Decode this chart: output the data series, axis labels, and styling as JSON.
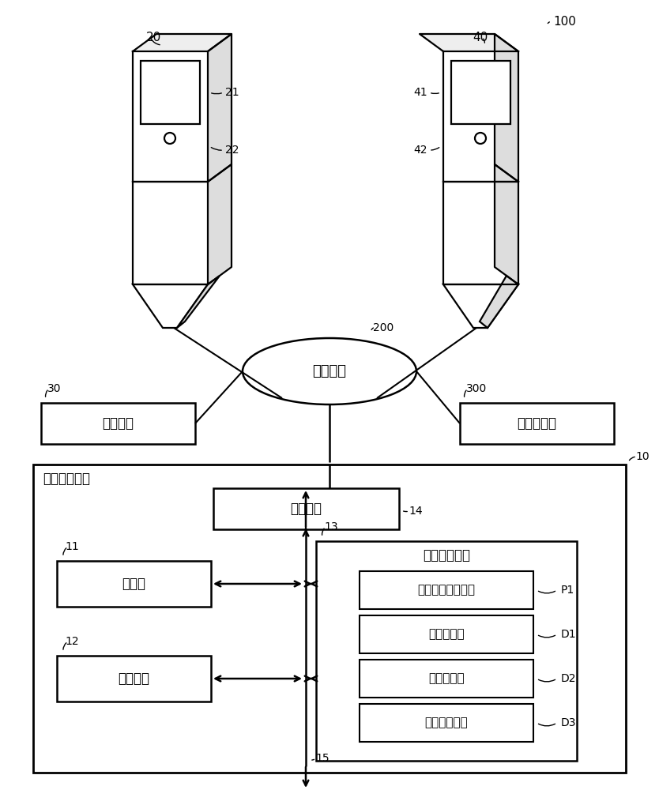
{
  "bg_color": "#ffffff",
  "line_color": "#000000",
  "labels": {
    "ref100": "100",
    "device1": "20",
    "device1_screen": "21",
    "device1_scanner": "22",
    "device2": "40",
    "device2_screen": "41",
    "device2_scanner": "42",
    "network": "200",
    "network_label": "通信网络",
    "sensor": "30",
    "sensor_label": "传感器组",
    "server": "300",
    "server_label": "结算服务器",
    "main_box": "10",
    "main_box_label": "销售管理装置",
    "comm_if": "14",
    "comm_if_label": "通信接口",
    "processor": "11",
    "processor_label": "处理器",
    "memory": "12",
    "memory_label": "主存储器",
    "aux_storage": "13",
    "aux_storage_label": "辅助存储装置",
    "p1_label": "销售管理应用程序",
    "p1": "P1",
    "d1_label": "购买商品表",
    "d1": "D1",
    "d2_label": "未知商品表",
    "d2": "D2",
    "d3_label": "丢失期间数据",
    "d3": "D3",
    "io": "15"
  }
}
